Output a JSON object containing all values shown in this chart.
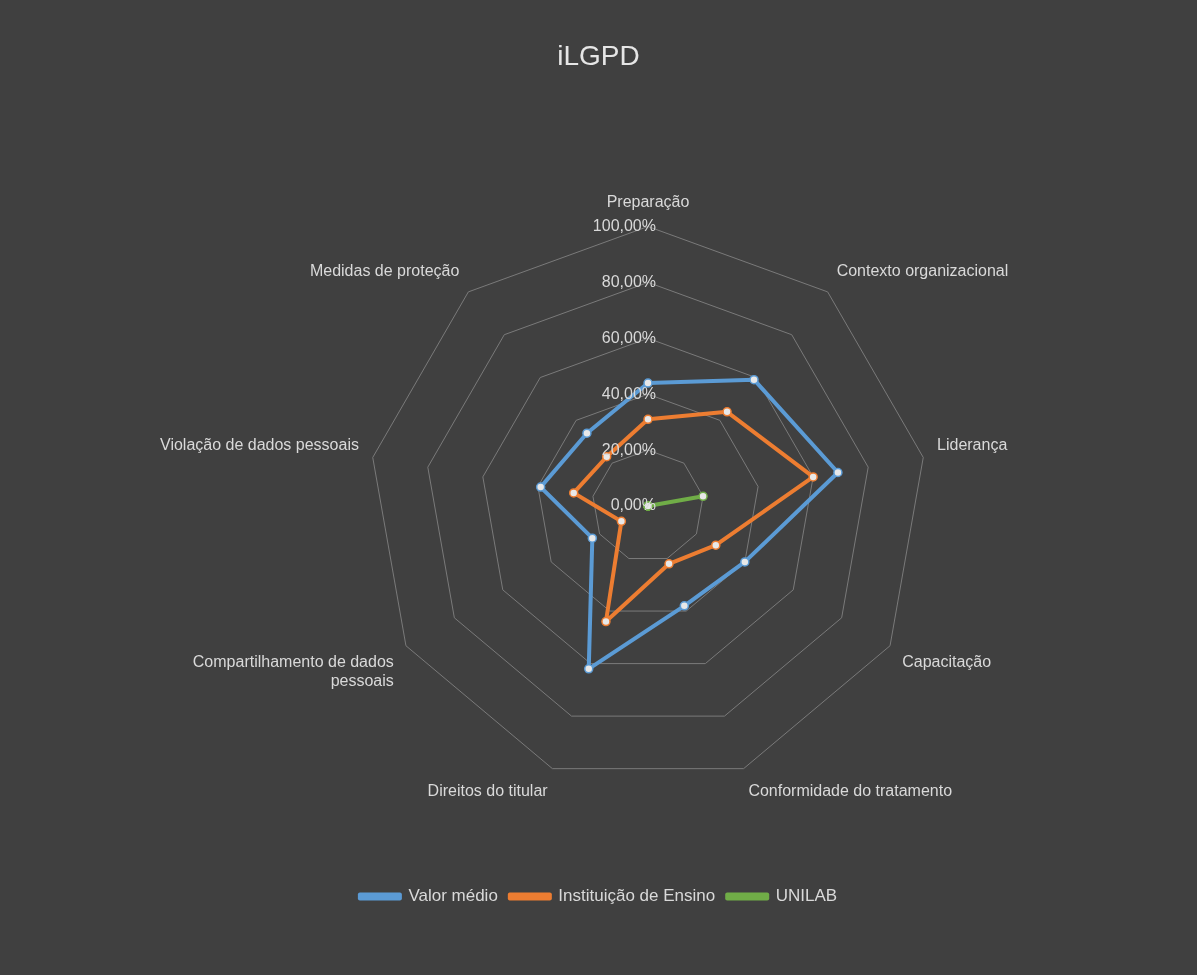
{
  "chart_data": {
    "type": "radar",
    "title": "iLGPD",
    "categories": [
      "Preparação",
      "Contexto organizacional",
      "Liderança",
      "Capacitação",
      "Conformidade do tratamento",
      "Direitos do titular",
      "Compartilhamento de dados pessoais",
      "Violação de dados pessoais",
      "Medidas de proteção"
    ],
    "series": [
      {
        "name": "Valor médio",
        "color": "#5b9bd5",
        "values": [
          44,
          59,
          69,
          40,
          38,
          62,
          23,
          39,
          34
        ]
      },
      {
        "name": "Instituição de Ensino",
        "color": "#ed7d31",
        "values": [
          31,
          44,
          60,
          28,
          22,
          44,
          11,
          27,
          23
        ]
      },
      {
        "name": "UNILAB",
        "color": "#70ad47",
        "values": [
          0,
          0,
          20,
          0,
          0,
          0,
          0,
          0,
          0
        ]
      }
    ],
    "ylim": [
      0,
      100
    ],
    "yticks": [
      {
        "value": 0,
        "label": "0,00%"
      },
      {
        "value": 20,
        "label": "20,00%"
      },
      {
        "value": 40,
        "label": "40,00%"
      },
      {
        "value": 60,
        "label": "60,00%"
      },
      {
        "value": 80,
        "label": "80,00%"
      },
      {
        "value": 100,
        "label": "100,00%"
      }
    ],
    "grid": true,
    "legend": "bottom",
    "marker": "circle",
    "line_style": "solid"
  }
}
